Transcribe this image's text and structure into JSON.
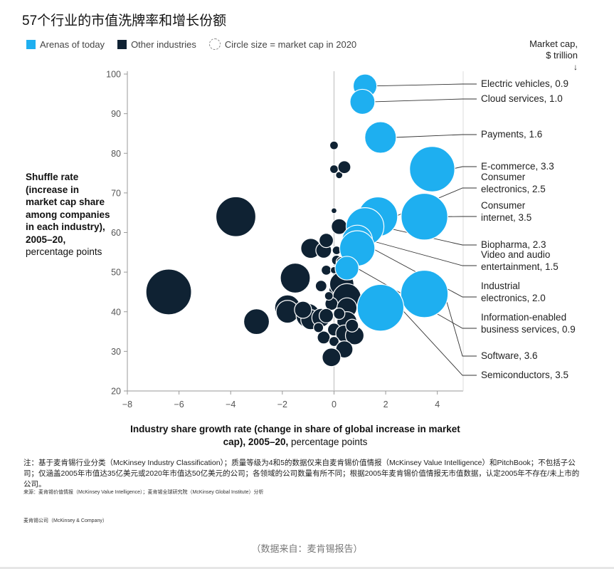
{
  "title": "57个行业的市值洗牌率和增长份额",
  "legend": {
    "arenas": "Arenas of today",
    "other": "Other industries",
    "size": "Circle size = market cap in 2020"
  },
  "market_cap_header": {
    "line1": "Market cap,",
    "line2": "$ trillion",
    "arrow": "↓"
  },
  "y_title": {
    "bold": "Shuffle rate (increase in market cap share among companies in each industry), 2005–20,",
    "normal": "percentage points"
  },
  "x_title": {
    "bold": "Industry share growth rate (change in share of global increase in market cap), 2005–20,",
    "normal": "percentage points"
  },
  "note": "注：基于麦肯锡行业分类（McKinsey Industry Classification）；质量等级为4和5的数据仅来自麦肯锡价值情报（McKinsey Value Intelligence）和PitchBook；不包括子公司；仅涵盖2005年市值达35亿美元或2020年市值达50亿美元的公司；各领域的公司数量有所不同；根据2005年麦肯锡价值情报无市值数据，认定2005年不存在/未上市的公司。",
  "source": "来源：麦肯锡价值情报（McKinsey Value Intelligence）；麦肯锡全球研究院（McKinsey Global Institute）分析",
  "copyright": "麦肯锡公司（McKinsey & Company）",
  "caption": "（数据来自：麦肯锡报告）",
  "colors": {
    "arenas": "#1eaff0",
    "other": "#0f2233",
    "axis": "#999999",
    "leader": "#333333"
  },
  "chart_data": {
    "type": "scatter",
    "title": "57个行业的市值洗牌率和增长份额",
    "xlabel": "Industry share growth rate (change in share of global increase in market cap), 2005–20, percentage points",
    "ylabel": "Shuffle rate (increase in market cap share among companies in each industry), 2005–20, percentage points",
    "xlim": [
      -8,
      5
    ],
    "ylim": [
      20,
      100
    ],
    "xticks": [
      -8,
      -6,
      -4,
      -2,
      0,
      2,
      4
    ],
    "xtick_labels": [
      "−8",
      "−6",
      "−4",
      "−2",
      "0",
      "2",
      "4"
    ],
    "yticks": [
      20,
      30,
      40,
      50,
      60,
      70,
      80,
      90,
      100
    ],
    "ytick_labels": [
      "20",
      "30",
      "40",
      "50",
      "60",
      "70",
      "80",
      "90",
      "100"
    ],
    "arenas": [
      {
        "name": "Electric vehicles",
        "cap": "0.9",
        "x": 1.2,
        "y": 97,
        "label": [
          "Electric vehicles, 0.9"
        ]
      },
      {
        "name": "Cloud services",
        "cap": "1.0",
        "x": 1.1,
        "y": 93,
        "label": [
          "Cloud services, 1.0"
        ]
      },
      {
        "name": "Payments",
        "cap": "1.6",
        "x": 1.8,
        "y": 84,
        "label": [
          "Payments, 1.6"
        ]
      },
      {
        "name": "E-commerce",
        "cap": "3.3",
        "x": 3.8,
        "y": 76,
        "label": [
          "E-commerce, 3.3"
        ]
      },
      {
        "name": "Consumer electronics",
        "cap": "2.5",
        "x": 1.7,
        "y": 64,
        "label": [
          "Consumer",
          "electronics, 2.5"
        ]
      },
      {
        "name": "Consumer internet",
        "cap": "3.5",
        "x": 3.5,
        "y": 64,
        "label": [
          "Consumer",
          "internet, 3.5"
        ]
      },
      {
        "name": "Biopharma",
        "cap": "2.3",
        "x": 1.2,
        "y": 61.5,
        "label": [
          "Biopharma, 2.3"
        ]
      },
      {
        "name": "Video and audio entertainment",
        "cap": "1.5",
        "x": 0.9,
        "y": 58,
        "label": [
          "Video and audio",
          "entertainment, 1.5"
        ]
      },
      {
        "name": "Industrial electronics",
        "cap": "2.0",
        "x": 0.9,
        "y": 56,
        "label": [
          "Industrial",
          "electronics, 2.0"
        ]
      },
      {
        "name": "Information-enabled business services",
        "cap": "0.9",
        "x": 0.5,
        "y": 51,
        "label": [
          "Information-enabled",
          "business services, 0.9"
        ]
      },
      {
        "name": "Software",
        "cap": "3.6",
        "x": 3.5,
        "y": 44.5,
        "label": [
          "Software, 3.6"
        ]
      },
      {
        "name": "Semiconductors",
        "cap": "3.5",
        "x": 1.8,
        "y": 41,
        "label": [
          "Semiconductors, 3.5"
        ]
      }
    ],
    "others": [
      {
        "x": -6.4,
        "y": 45,
        "r": 32
      },
      {
        "x": -3.8,
        "y": 64,
        "r": 28
      },
      {
        "x": -3.0,
        "y": 37.5,
        "r": 18
      },
      {
        "x": -1.5,
        "y": 48.5,
        "r": 21
      },
      {
        "x": -1.8,
        "y": 41,
        "r": 18
      },
      {
        "x": -1.8,
        "y": 40,
        "r": 16
      },
      {
        "x": -1.0,
        "y": 39,
        "r": 17
      },
      {
        "x": -0.9,
        "y": 38,
        "r": 14
      },
      {
        "x": -0.5,
        "y": 38.5,
        "r": 13
      },
      {
        "x": -0.9,
        "y": 56,
        "r": 14
      },
      {
        "x": -0.4,
        "y": 55.5,
        "r": 11
      },
      {
        "x": -0.3,
        "y": 58,
        "r": 10
      },
      {
        "x": 0.2,
        "y": 61.5,
        "r": 11
      },
      {
        "x": 0.0,
        "y": 65.5,
        "r": 4
      },
      {
        "x": 0.0,
        "y": 82,
        "r": 6
      },
      {
        "x": 0.0,
        "y": 76,
        "r": 6
      },
      {
        "x": 0.2,
        "y": 74.5,
        "r": 5
      },
      {
        "x": 0.4,
        "y": 76.5,
        "r": 9
      },
      {
        "x": 0.1,
        "y": 55.5,
        "r": 6
      },
      {
        "x": 0.1,
        "y": 53,
        "r": 7
      },
      {
        "x": -0.3,
        "y": 50.5,
        "r": 7
      },
      {
        "x": 0.2,
        "y": 49,
        "r": 9
      },
      {
        "x": -0.5,
        "y": 46.5,
        "r": 8
      },
      {
        "x": 0.0,
        "y": 45.5,
        "r": 7
      },
      {
        "x": 0.3,
        "y": 47,
        "r": 17
      },
      {
        "x": 0.5,
        "y": 43.5,
        "r": 20
      },
      {
        "x": -0.1,
        "y": 42,
        "r": 9
      },
      {
        "x": 0.5,
        "y": 41,
        "r": 14
      },
      {
        "x": -0.3,
        "y": 39,
        "r": 10
      },
      {
        "x": 0.5,
        "y": 37.5,
        "r": 14
      },
      {
        "x": 0.0,
        "y": 35.5,
        "r": 9
      },
      {
        "x": 0.4,
        "y": 34.5,
        "r": 12
      },
      {
        "x": 0.8,
        "y": 34,
        "r": 13
      },
      {
        "x": -0.4,
        "y": 33.5,
        "r": 9
      },
      {
        "x": 0.0,
        "y": 32.5,
        "r": 7
      },
      {
        "x": 0.4,
        "y": 30.5,
        "r": 12
      },
      {
        "x": -0.1,
        "y": 28.5,
        "r": 13
      },
      {
        "x": -1.2,
        "y": 40.5,
        "r": 12
      },
      {
        "x": 0.3,
        "y": 52.5,
        "r": 8
      },
      {
        "x": -0.2,
        "y": 44,
        "r": 6
      },
      {
        "x": 0.7,
        "y": 36.5,
        "r": 9
      },
      {
        "x": 0.2,
        "y": 39.5,
        "r": 8
      },
      {
        "x": -0.6,
        "y": 36,
        "r": 7
      },
      {
        "x": 0.6,
        "y": 49.5,
        "r": 8
      },
      {
        "x": 0.0,
        "y": 50.5,
        "r": 5
      }
    ]
  }
}
